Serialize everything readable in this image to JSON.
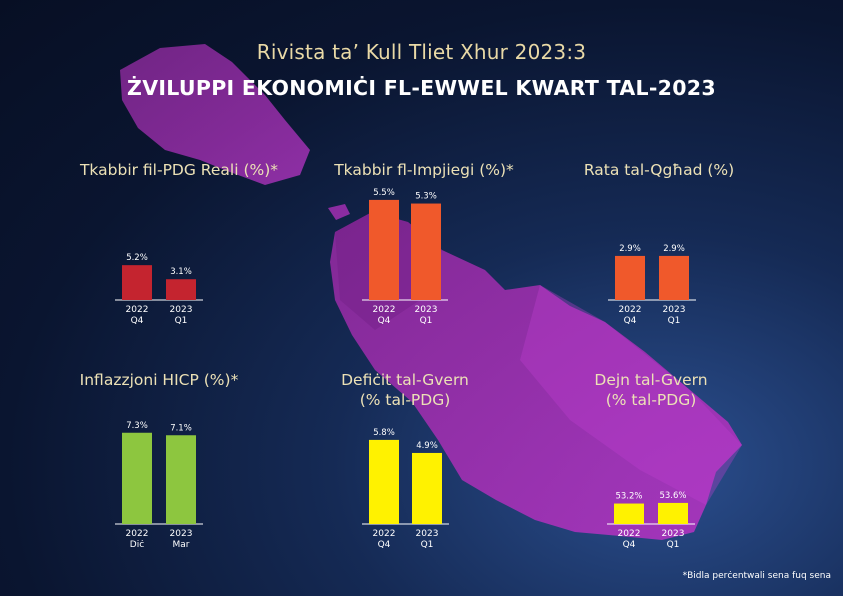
{
  "header": {
    "subtitle": "Rivista ta’ Kull Tliet Xhur 2023:3",
    "title": "ŻVILUPPI EKONOMIĊI FL-EWWEL KWART TAL-2023"
  },
  "footnote": "*Bidla perċentwali sena fuq sena",
  "colors": {
    "red": "#c4242f",
    "orange": "#f0592b",
    "green": "#8dc63f",
    "yellow": "#fff200",
    "title_gold": "#ece1b6",
    "island": "#a02cb0"
  },
  "chart_data": [
    {
      "type": "bar",
      "title": "Tkabbir fil-PDG Reali (%)*",
      "color": "#c4242f",
      "categories": [
        [
          "2022",
          "Q4"
        ],
        [
          "2023",
          "Q1"
        ]
      ],
      "values": [
        5.2,
        3.1
      ],
      "labels": [
        "5.2%",
        "3.1%"
      ],
      "ylim": [
        0,
        6
      ]
    },
    {
      "type": "bar",
      "title": "Tkabbir fl-Impjiegi (%)*",
      "color": "#f0592b",
      "categories": [
        [
          "2022",
          "Q4"
        ],
        [
          "2023",
          "Q1"
        ]
      ],
      "values": [
        5.5,
        5.3
      ],
      "labels": [
        "5.5%",
        "5.3%"
      ],
      "ylim": [
        0,
        6
      ]
    },
    {
      "type": "bar",
      "title": "Rata tal-Qgħad (%)",
      "color": "#f0592b",
      "categories": [
        [
          "2022",
          "Q4"
        ],
        [
          "2023",
          "Q1"
        ]
      ],
      "values": [
        2.9,
        2.9
      ],
      "labels": [
        "2.9%",
        "2.9%"
      ],
      "ylim": [
        0,
        6
      ]
    },
    {
      "type": "bar",
      "title": "Inflazzjoni HICP (%)*",
      "color": "#8dc63f",
      "categories": [
        [
          "2022",
          "Diċ"
        ],
        [
          "2023",
          "Mar"
        ]
      ],
      "values": [
        7.3,
        7.1
      ],
      "labels": [
        "7.3%",
        "7.1%"
      ],
      "ylim": [
        0,
        8
      ]
    },
    {
      "type": "bar",
      "title": "Defiċit tal-Gvern\n(% tal-PDG)",
      "color": "#fff200",
      "categories": [
        [
          "2022",
          "Q4"
        ],
        [
          "2023",
          "Q1"
        ]
      ],
      "values": [
        5.8,
        4.9
      ],
      "labels": [
        "5.8%",
        "4.9%"
      ],
      "ylim": [
        0,
        8
      ]
    },
    {
      "type": "bar",
      "title": "Dejn tal-Gvern\n(% tal-PDG)",
      "color": "#fff200",
      "categories": [
        [
          "2022",
          "Q4"
        ],
        [
          "2023",
          "Q1"
        ]
      ],
      "values": [
        53.2,
        53.6
      ],
      "labels": [
        "53.2%",
        "53.6%"
      ],
      "ylim": [
        0,
        60
      ]
    }
  ]
}
